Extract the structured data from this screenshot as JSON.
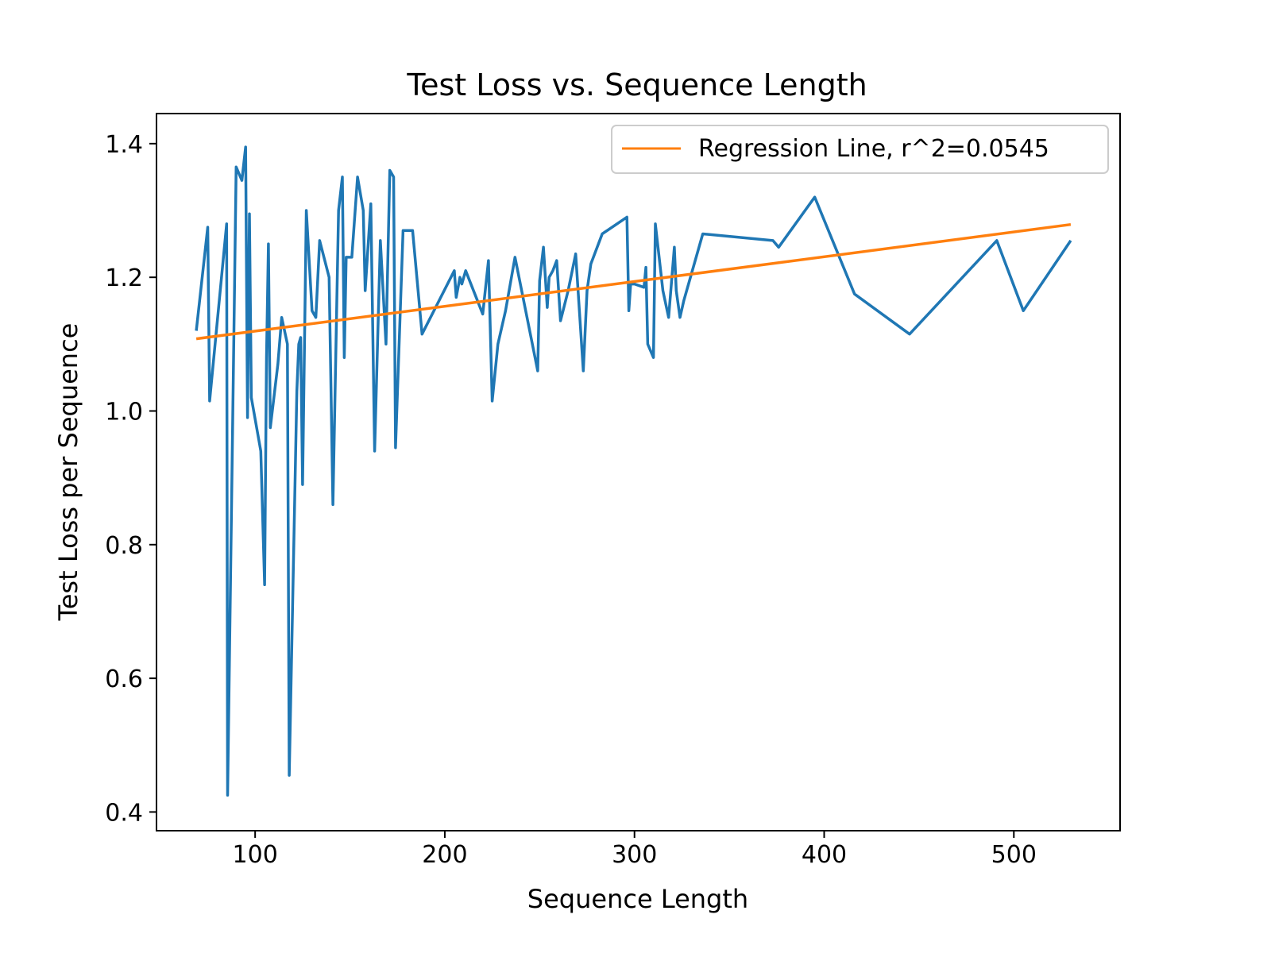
{
  "chart_data": {
    "type": "line",
    "title": "Test Loss vs. Sequence Length",
    "xlabel": "Sequence Length",
    "ylabel": "Test Loss per Sequence",
    "xlim": [
      48,
      556
    ],
    "ylim": [
      0.372,
      1.445
    ],
    "x_ticks": [
      100,
      200,
      300,
      400,
      500
    ],
    "y_ticks": [
      0.4,
      0.6,
      0.8,
      1.0,
      1.2,
      1.4
    ],
    "x_tick_labels": [
      "100",
      "200",
      "300",
      "400",
      "500"
    ],
    "y_tick_labels": [
      "0.4",
      "0.6",
      "0.8",
      "1.0",
      "1.2",
      "1.4"
    ],
    "grid": false,
    "legend_position": "top-right",
    "series": [
      {
        "color": "#1f77b4",
        "x": [
          69,
          75,
          76,
          85,
          85.5,
          90,
          93,
          95,
          96,
          97,
          98,
          103,
          105,
          106,
          107,
          108,
          112,
          114,
          117,
          118,
          122,
          123,
          124,
          125,
          127,
          130,
          132,
          134,
          139,
          141,
          144,
          146,
          147,
          148,
          150,
          151,
          154,
          157,
          158,
          161,
          163,
          166,
          169,
          171,
          173,
          174,
          178,
          179,
          183,
          188,
          205,
          206,
          208,
          209,
          211,
          220,
          223,
          225,
          228,
          232,
          237,
          249,
          250,
          252,
          254,
          255,
          257,
          259,
          261,
          265,
          269,
          273,
          275,
          277,
          283,
          296,
          297,
          298,
          300,
          305,
          306,
          307,
          310,
          311,
          315,
          318,
          321,
          322,
          324,
          326,
          336,
          373,
          376,
          395,
          416,
          445,
          491,
          505,
          530
        ],
        "y": [
          1.12,
          1.275,
          1.015,
          1.28,
          0.425,
          1.365,
          1.345,
          1.395,
          0.99,
          1.295,
          1.02,
          0.94,
          0.74,
          1.08,
          1.25,
          0.975,
          1.07,
          1.14,
          1.1,
          0.455,
          1.03,
          1.1,
          1.11,
          0.89,
          1.3,
          1.15,
          1.14,
          1.255,
          1.2,
          0.86,
          1.3,
          1.35,
          1.08,
          1.23,
          1.23,
          1.23,
          1.35,
          1.3,
          1.18,
          1.31,
          0.94,
          1.255,
          1.1,
          1.36,
          1.35,
          0.945,
          1.27,
          1.27,
          1.27,
          1.115,
          1.21,
          1.17,
          1.2,
          1.19,
          1.21,
          1.145,
          1.225,
          1.015,
          1.1,
          1.15,
          1.23,
          1.06,
          1.195,
          1.245,
          1.155,
          1.2,
          1.21,
          1.225,
          1.135,
          1.18,
          1.235,
          1.06,
          1.18,
          1.22,
          1.265,
          1.29,
          1.15,
          1.19,
          1.19,
          1.185,
          1.215,
          1.1,
          1.08,
          1.28,
          1.18,
          1.14,
          1.245,
          1.18,
          1.14,
          1.165,
          1.265,
          1.255,
          1.245,
          1.32,
          1.175,
          1.115,
          1.255,
          1.15,
          1.255
        ]
      },
      {
        "name": "Regression Line, r^2=0.0545",
        "color": "#ff7f0e",
        "x": [
          69,
          530
        ],
        "y": [
          1.108,
          1.279
        ]
      }
    ]
  }
}
